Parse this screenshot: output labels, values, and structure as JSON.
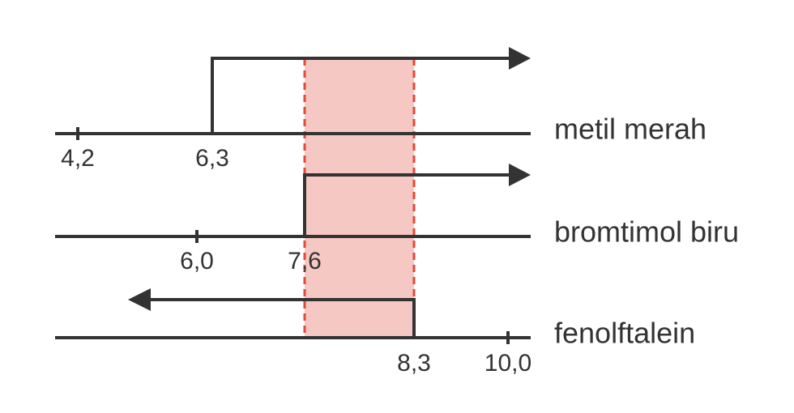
{
  "lines": [
    {
      "label": "metil merah",
      "ticks": [
        "4,2",
        "6,3"
      ]
    },
    {
      "label": "bromtimol biru",
      "ticks": [
        "6,0",
        "7,6"
      ]
    },
    {
      "label": "fenolftalein",
      "ticks": [
        "8,3",
        "10,0"
      ]
    }
  ]
}
